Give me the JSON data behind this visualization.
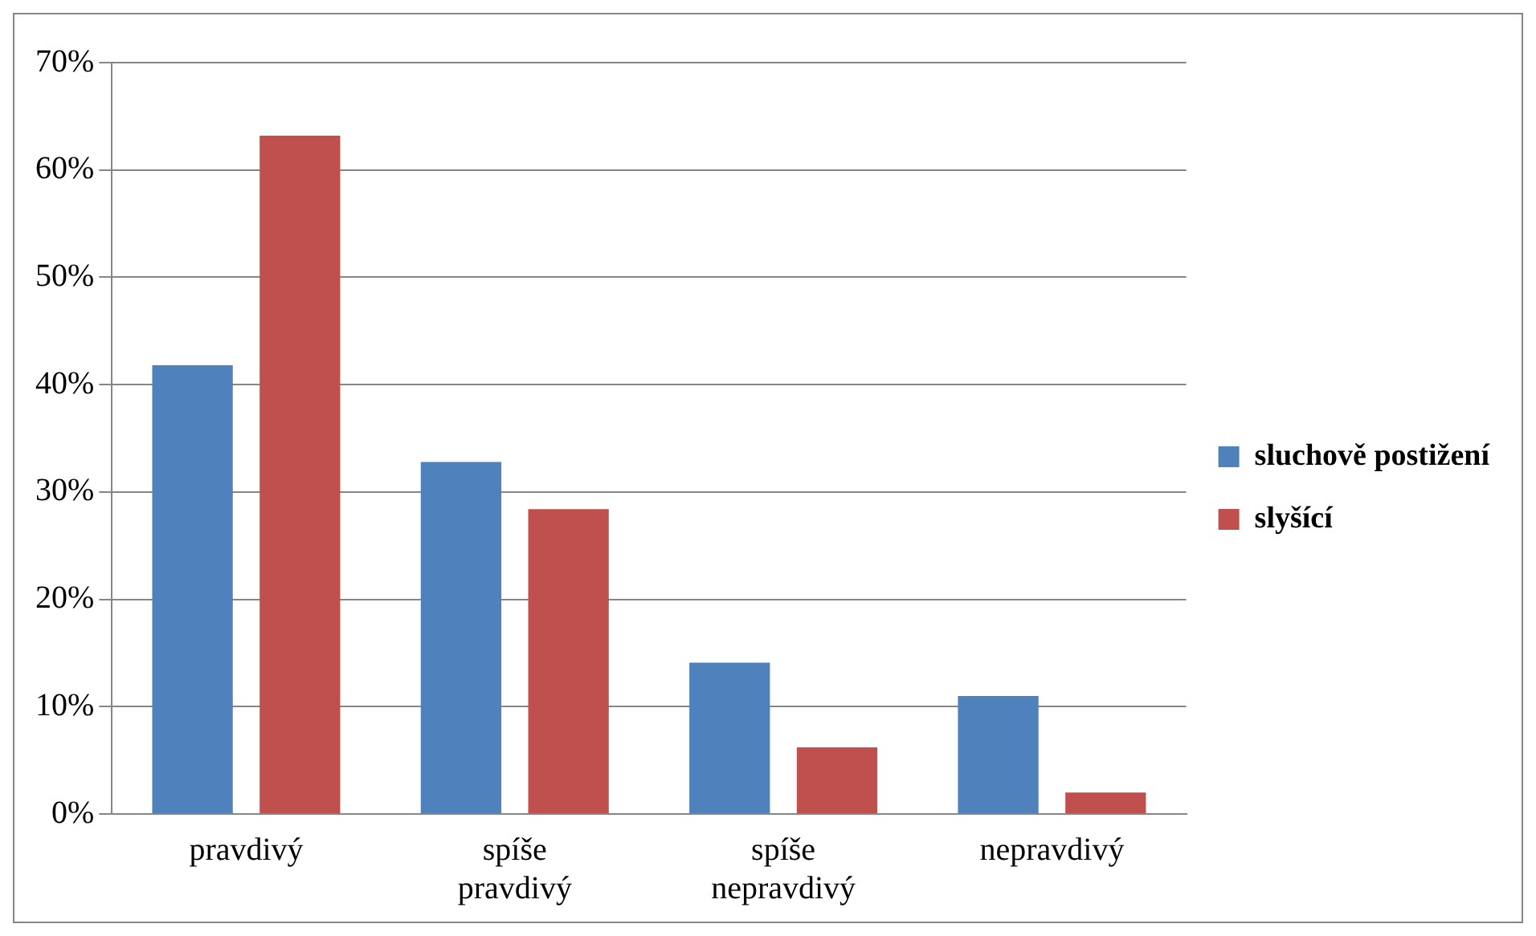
{
  "chart_data": {
    "type": "bar",
    "categories": [
      "pravdivý",
      "spíše pravdivý",
      "spíše nepravdivý",
      "nepravdivý"
    ],
    "series": [
      {
        "name": "sluchově postižení",
        "color": "#4f81bd",
        "values": [
          41.8,
          32.8,
          14.1,
          11
        ]
      },
      {
        "name": "slyšící",
        "color": "#c0504d",
        "values": [
          63.2,
          28.4,
          6.2,
          2
        ]
      }
    ],
    "ylim": [
      0,
      70
    ],
    "yticks": [
      {
        "value": 0,
        "label": "0%"
      },
      {
        "value": 10,
        "label": "10%"
      },
      {
        "value": 20,
        "label": "20%"
      },
      {
        "value": 30,
        "label": "30%"
      },
      {
        "value": 40,
        "label": "40%"
      },
      {
        "value": 50,
        "label": "50%"
      },
      {
        "value": 60,
        "label": "60%"
      },
      {
        "value": 70,
        "label": "70%"
      }
    ],
    "grid": "y",
    "legend": "right"
  }
}
